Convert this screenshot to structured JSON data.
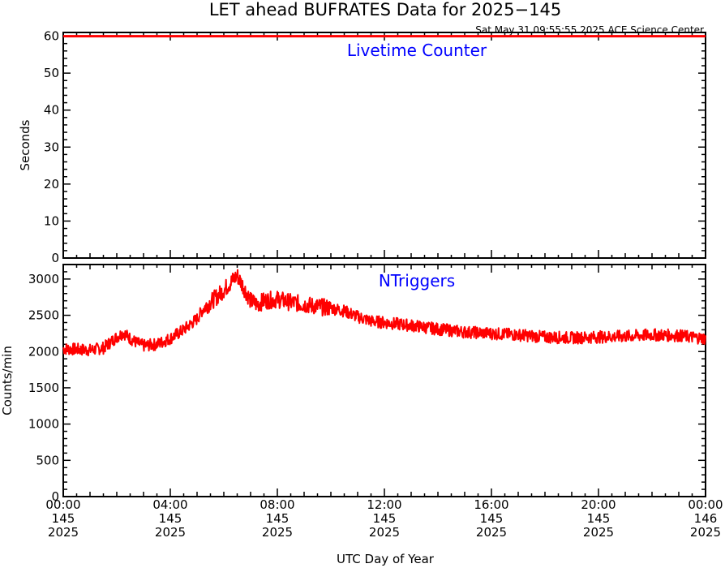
{
  "title": "LET ahead BUFRATES Data for 2025−145",
  "timestamp": "Sat May 31 09:55:55 2025 ACE Science Center",
  "xlabel": "UTC Day of Year",
  "colors": {
    "series": "#ff0000",
    "panel_label": "#0000ff",
    "axes": "#000000"
  },
  "chart_data": [
    {
      "type": "line",
      "panel_label": "Livetime Counter",
      "ylabel": "Seconds",
      "ylim": [
        0,
        61
      ],
      "yticks": [
        "0",
        "10",
        "20",
        "30",
        "40",
        "50",
        "60"
      ],
      "yticks_values": [
        0,
        10,
        20,
        30,
        40,
        50,
        60
      ],
      "xlim": [
        0,
        24
      ],
      "series": [
        {
          "x": [
            0,
            24
          ],
          "y": [
            60,
            60
          ]
        }
      ]
    },
    {
      "type": "line",
      "panel_label": "NTriggers",
      "ylabel": "Counts/min",
      "ylim": [
        0,
        3200
      ],
      "yticks": [
        "0",
        "500",
        "1000",
        "1500",
        "2000",
        "2500",
        "3000"
      ],
      "yticks_values": [
        0,
        500,
        1000,
        1500,
        2000,
        2500,
        3000
      ],
      "xlim": [
        0,
        24
      ],
      "series": [
        {
          "x": [
            0,
            0.5,
            1,
            1.5,
            2,
            2.25,
            2.5,
            2.75,
            3,
            3.5,
            4,
            4.5,
            5,
            5.25,
            5.5,
            5.75,
            6,
            6.25,
            6.5,
            6.75,
            7,
            7.25,
            7.5,
            8,
            8.5,
            9,
            9.5,
            10,
            10.5,
            11,
            11.5,
            12,
            12.5,
            13,
            14,
            15,
            16,
            17,
            18,
            19,
            20,
            21,
            22,
            23,
            24
          ],
          "y": [
            2040,
            2030,
            2020,
            2050,
            2200,
            2260,
            2180,
            2120,
            2080,
            2100,
            2180,
            2300,
            2450,
            2600,
            2680,
            2760,
            2850,
            2950,
            3050,
            2880,
            2700,
            2650,
            2700,
            2720,
            2680,
            2650,
            2620,
            2600,
            2560,
            2480,
            2420,
            2400,
            2380,
            2360,
            2310,
            2270,
            2250,
            2230,
            2200,
            2190,
            2200,
            2210,
            2230,
            2220,
            2180
          ]
        }
      ]
    }
  ],
  "x_ticks": [
    {
      "time": "00:00",
      "day": "145",
      "year": "2025",
      "hour": 0
    },
    {
      "time": "04:00",
      "day": "145",
      "year": "2025",
      "hour": 4
    },
    {
      "time": "08:00",
      "day": "145",
      "year": "2025",
      "hour": 8
    },
    {
      "time": "12:00",
      "day": "145",
      "year": "2025",
      "hour": 12
    },
    {
      "time": "16:00",
      "day": "145",
      "year": "2025",
      "hour": 16
    },
    {
      "time": "20:00",
      "day": "145",
      "year": "2025",
      "hour": 20
    },
    {
      "time": "00:00",
      "day": "146",
      "year": "2025",
      "hour": 24
    }
  ]
}
